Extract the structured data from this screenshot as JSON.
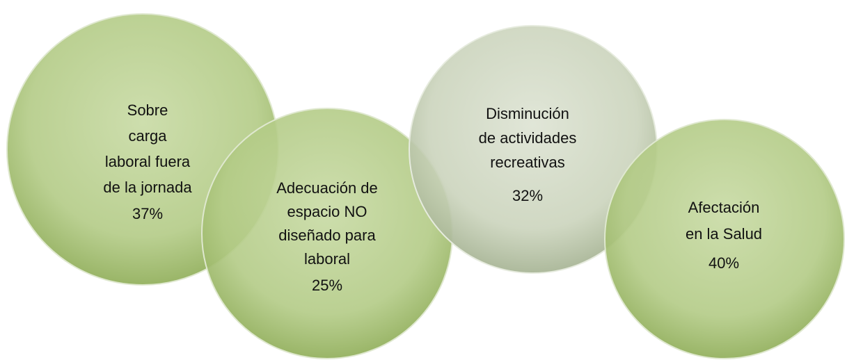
{
  "nodes": [
    {
      "lines": [
        "Sobre",
        "carga",
        "laboral fuera",
        "de la jornada"
      ],
      "percent": "37%"
    },
    {
      "lines": [
        "Adecuación de",
        "espacio NO",
        "diseñado para",
        "laboral"
      ],
      "percent": "25%"
    },
    {
      "lines": [
        "Disminución",
        "de actividades",
        "recreativas"
      ],
      "percent": "32%"
    },
    {
      "lines": [
        "Afectación",
        "en la Salud"
      ],
      "percent": "40%"
    }
  ]
}
